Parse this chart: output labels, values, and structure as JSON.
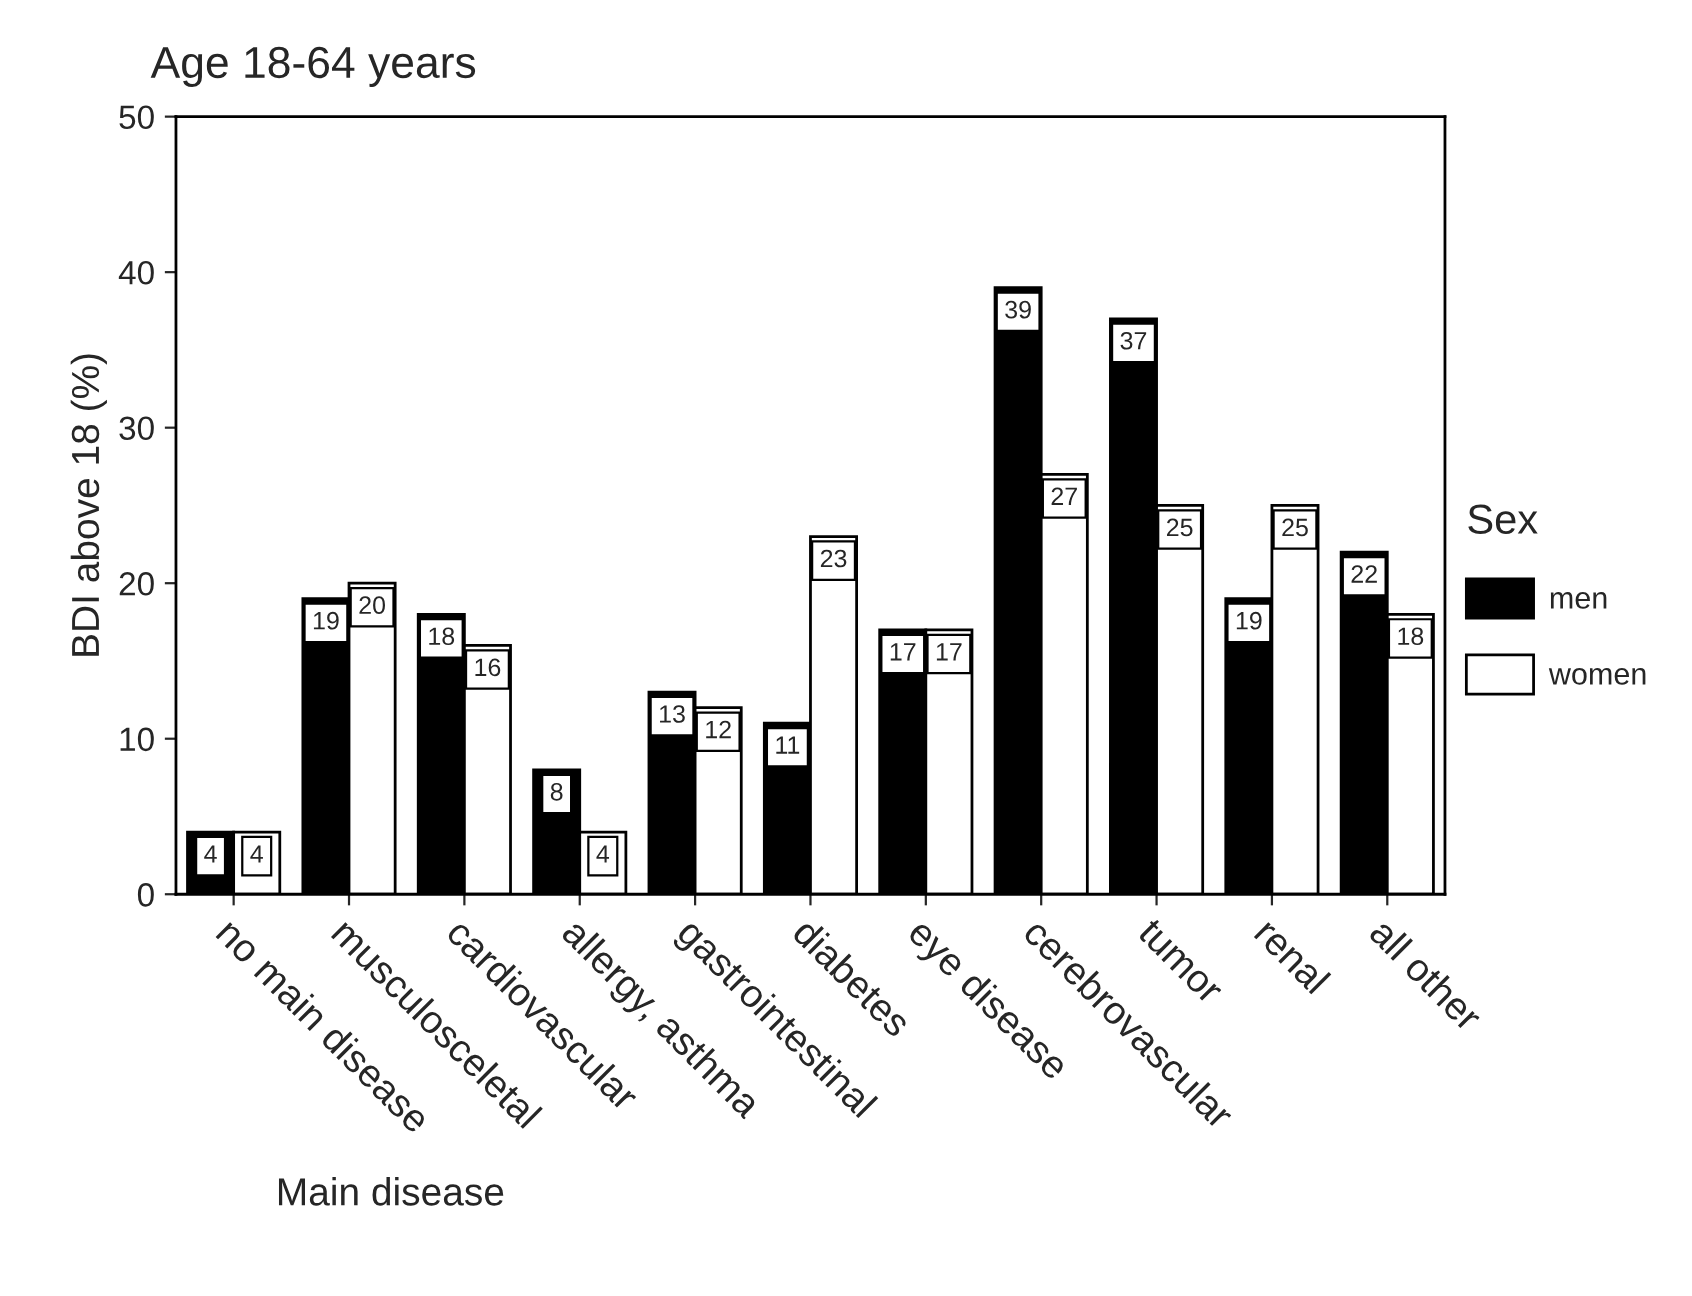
{
  "chart_data": {
    "type": "bar",
    "title": "Age 18-64 years",
    "xlabel": "Main disease",
    "ylabel": "BDI above 18 (%)",
    "legend_title": "Sex",
    "categories": [
      "no main disease",
      "musculosceletal",
      "cardiovascular",
      "allergy, asthma",
      "gastrointestinal",
      "diabetes",
      "eye disease",
      "cerebrovascular",
      "tumor",
      "renal",
      "all other"
    ],
    "series": [
      {
        "name": "men",
        "color": "#000000",
        "values": [
          4,
          19,
          18,
          8,
          13,
          11,
          17,
          39,
          37,
          19,
          22
        ]
      },
      {
        "name": "women",
        "color": "#ffffff",
        "values": [
          4,
          20,
          16,
          4,
          12,
          23,
          17,
          27,
          25,
          25,
          18
        ]
      }
    ],
    "ylim": [
      0,
      50
    ],
    "yticks": [
      0,
      10,
      20,
      30,
      40,
      50
    ],
    "grid": false,
    "legend": "right",
    "data_labels": true
  }
}
